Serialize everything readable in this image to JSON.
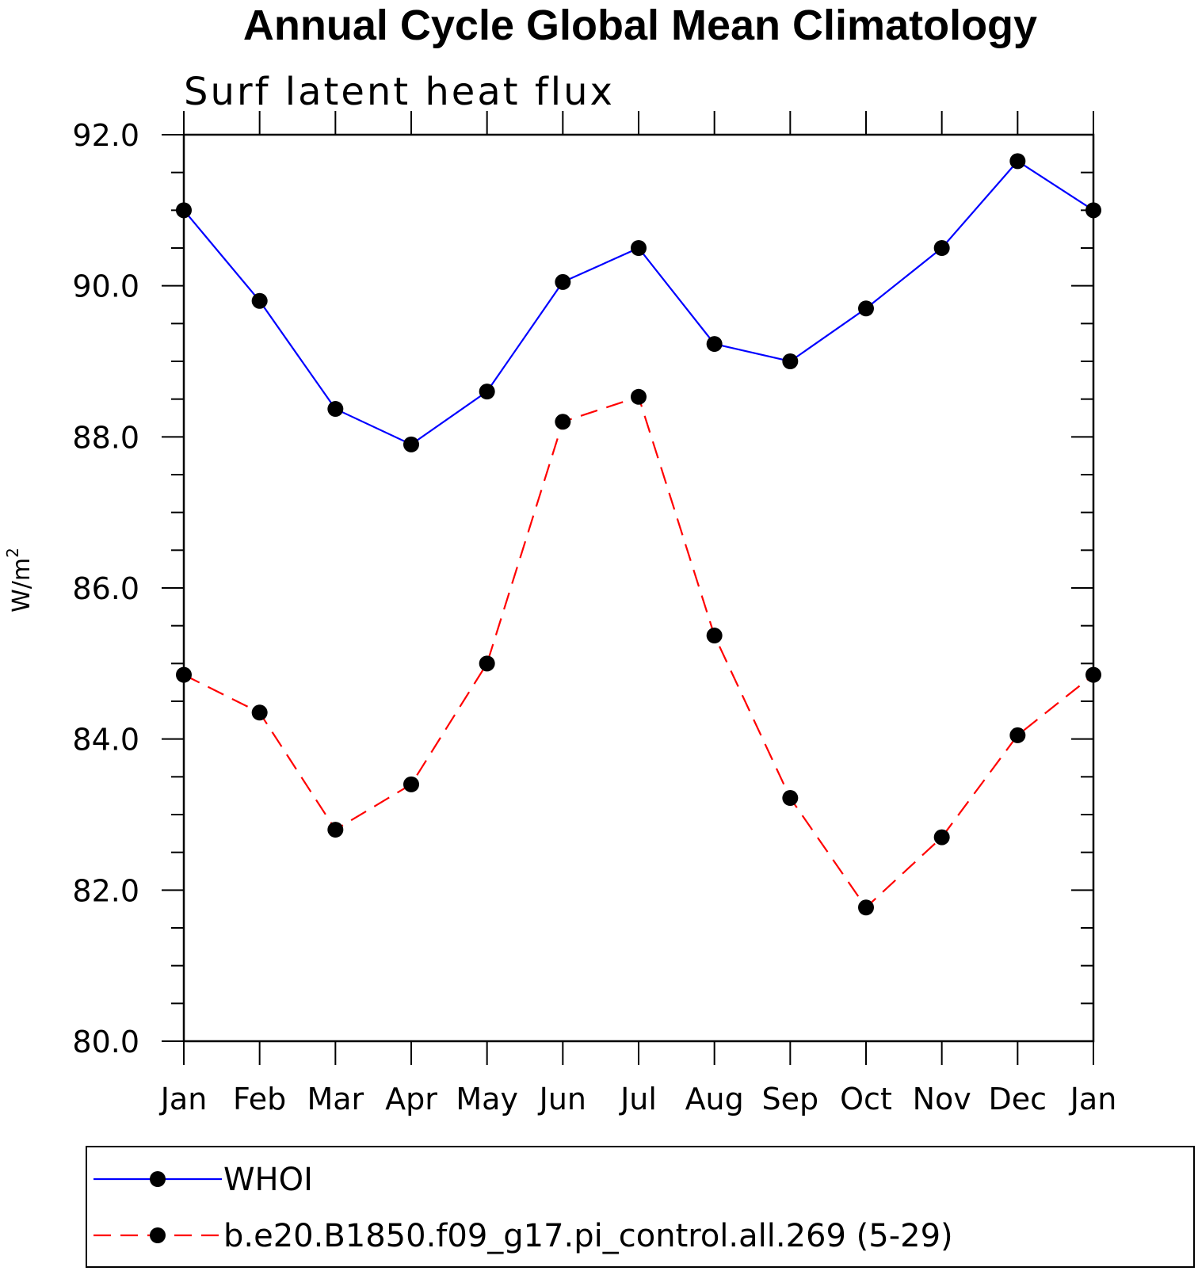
{
  "chart_data": {
    "type": "line",
    "title": "Annual Cycle Global Mean Climatology",
    "subtitle": "Surf latent heat flux",
    "ylabel": "W/m",
    "ylabel_superscript": "2",
    "xlabel": "",
    "categories": [
      "Jan",
      "Feb",
      "Mar",
      "Apr",
      "May",
      "Jun",
      "Jul",
      "Aug",
      "Sep",
      "Oct",
      "Nov",
      "Dec",
      "Jan"
    ],
    "ylim": [
      80.0,
      92.0
    ],
    "y_ticks": [
      "80.0",
      "82.0",
      "84.0",
      "86.0",
      "88.0",
      "90.0",
      "92.0"
    ],
    "series": [
      {
        "name": "WHOI",
        "color": "#0000ff",
        "dash": "solid",
        "values": [
          91.0,
          89.8,
          88.37,
          87.9,
          88.6,
          90.05,
          90.5,
          89.23,
          89.0,
          89.7,
          90.5,
          91.65,
          91.0
        ]
      },
      {
        "name": "b.e20.B1850.f09_g17.pi_control.all.269 (5-29)",
        "color": "#ff0000",
        "dash": "dashed",
        "values": [
          84.85,
          84.35,
          82.8,
          83.4,
          85.0,
          88.2,
          88.53,
          85.37,
          83.22,
          81.77,
          82.7,
          84.05,
          84.85
        ]
      }
    ],
    "legend_position": "bottom",
    "grid": false
  }
}
